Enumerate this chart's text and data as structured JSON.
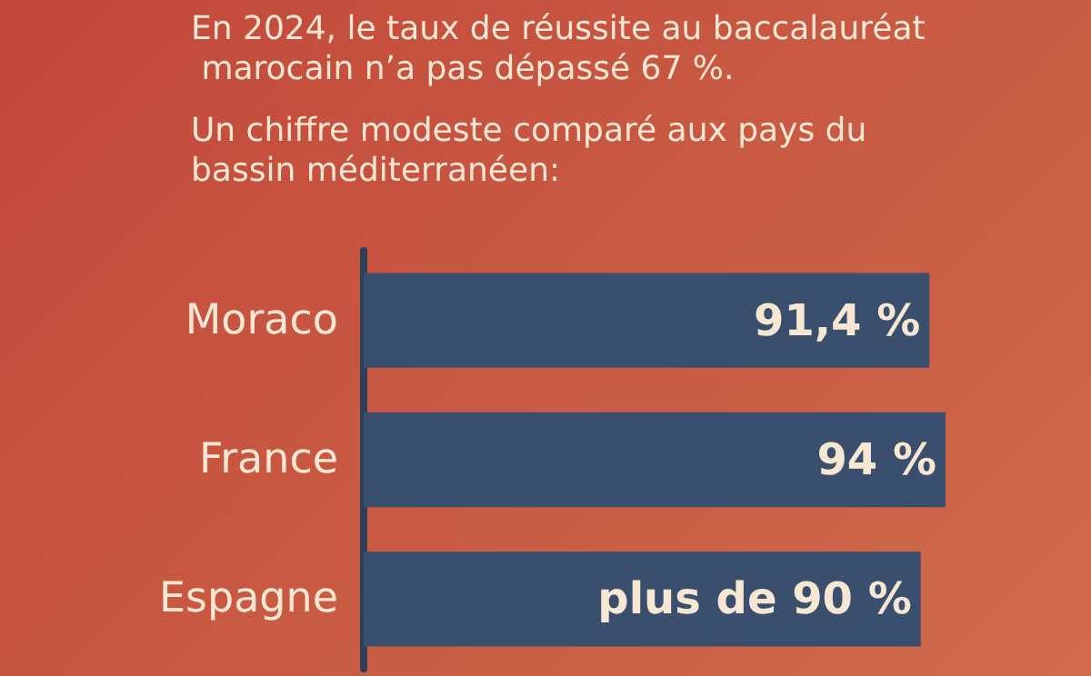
{
  "chart_data": {
    "type": "bar",
    "orientation": "horizontal",
    "title": "En 2024, le taux de réussite au baccalauréat marocain n’a pas dépassé 67 %.",
    "subtitle": "Un chiffre modeste comparé aux pays du bassin méditerranéen:",
    "categories": [
      "Moraco",
      "France",
      "Espagne"
    ],
    "values": [
      91.4,
      94,
      90
    ],
    "value_labels": [
      "91,4 %",
      "94 %",
      "plus de 90 %"
    ],
    "color": "#3a4f6e"
  }
}
